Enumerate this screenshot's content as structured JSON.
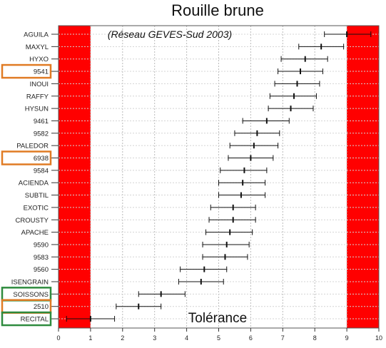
{
  "chart_data": {
    "type": "errorbar",
    "title": "Rouille brune",
    "subtitle": "(Réseau GEVES-Sud 2003)",
    "annotation": "Tolérance",
    "xlim": [
      0,
      10
    ],
    "x_ticks": [
      "0",
      "1",
      "2",
      "3",
      "4",
      "5",
      "6",
      "7",
      "8",
      "9",
      "10"
    ],
    "grid": true,
    "shaded_ranges": [
      {
        "from": 0,
        "to": 1,
        "color": "#ff0000"
      },
      {
        "from": 9,
        "to": 10,
        "color": "#ff0000"
      }
    ],
    "categories": [
      "AGUILA",
      "MAXYL",
      "HYXO",
      "9541",
      "INOUI",
      "RAFFY",
      "HYSUN",
      "9461",
      "9582",
      "PALEDOR",
      "6938",
      "9584",
      "ACIENDA",
      "SUBTIL",
      "EXOTIC",
      "CROUSTY",
      "APACHE",
      "9590",
      "9583",
      "9560",
      "ISENGRAIN",
      "SOISSONS",
      "2510",
      "RECITAL"
    ],
    "values": [
      9.0,
      8.2,
      7.7,
      7.55,
      7.45,
      7.35,
      7.25,
      6.5,
      6.2,
      6.1,
      6.0,
      5.8,
      5.75,
      5.7,
      5.45,
      5.45,
      5.35,
      5.25,
      5.2,
      4.55,
      4.45,
      3.2,
      2.5,
      1.0
    ],
    "lower": [
      8.3,
      7.5,
      6.95,
      6.85,
      6.75,
      6.6,
      6.55,
      5.75,
      5.5,
      5.35,
      5.3,
      5.05,
      5.0,
      5.0,
      4.75,
      4.7,
      4.6,
      4.5,
      4.5,
      3.8,
      3.75,
      2.5,
      1.8,
      0.25
    ],
    "upper": [
      9.75,
      8.9,
      8.4,
      8.25,
      8.15,
      8.05,
      7.95,
      7.2,
      6.9,
      6.85,
      6.7,
      6.5,
      6.45,
      6.45,
      6.15,
      6.15,
      6.05,
      5.95,
      5.9,
      5.25,
      5.15,
      3.95,
      3.2,
      1.75
    ],
    "highlight_boxes": [
      {
        "label": "9541",
        "color": "#e07b24"
      },
      {
        "label": "6938",
        "color": "#e07b24"
      },
      {
        "label": "SOISSONS",
        "color": "#2e8b3e"
      },
      {
        "label": "2510",
        "color": "#e07b24"
      },
      {
        "label": "RECITAL",
        "color": "#2e8b3e"
      }
    ]
  }
}
